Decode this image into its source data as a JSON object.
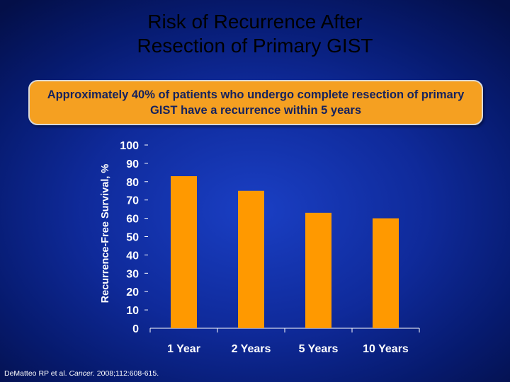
{
  "title": {
    "line1": "Risk of Recurrence After",
    "line2": "Resection of Primary GIST"
  },
  "callout": {
    "text": "Approximately 40% of patients who undergo complete resection of primary GIST have a recurrence within 5 years"
  },
  "chart_data": {
    "type": "bar",
    "categories": [
      "1 Year",
      "2 Years",
      "5 Years",
      "10 Years"
    ],
    "values": [
      83,
      75,
      63,
      60
    ],
    "ylabel": "Recurrence-Free Survival, %",
    "xlabel": "",
    "ylim": [
      0,
      100
    ],
    "yticks": [
      "0",
      "10",
      "20",
      "30",
      "40",
      "50",
      "60",
      "70",
      "80",
      "90",
      "100"
    ],
    "bar_color": "#ff9900",
    "text_color": "#ffffff",
    "grid": false
  },
  "footnote": {
    "authors": "DeMatteo RP et al.",
    "journal": "Cancer.",
    "citation": "2008;112:608-615."
  }
}
